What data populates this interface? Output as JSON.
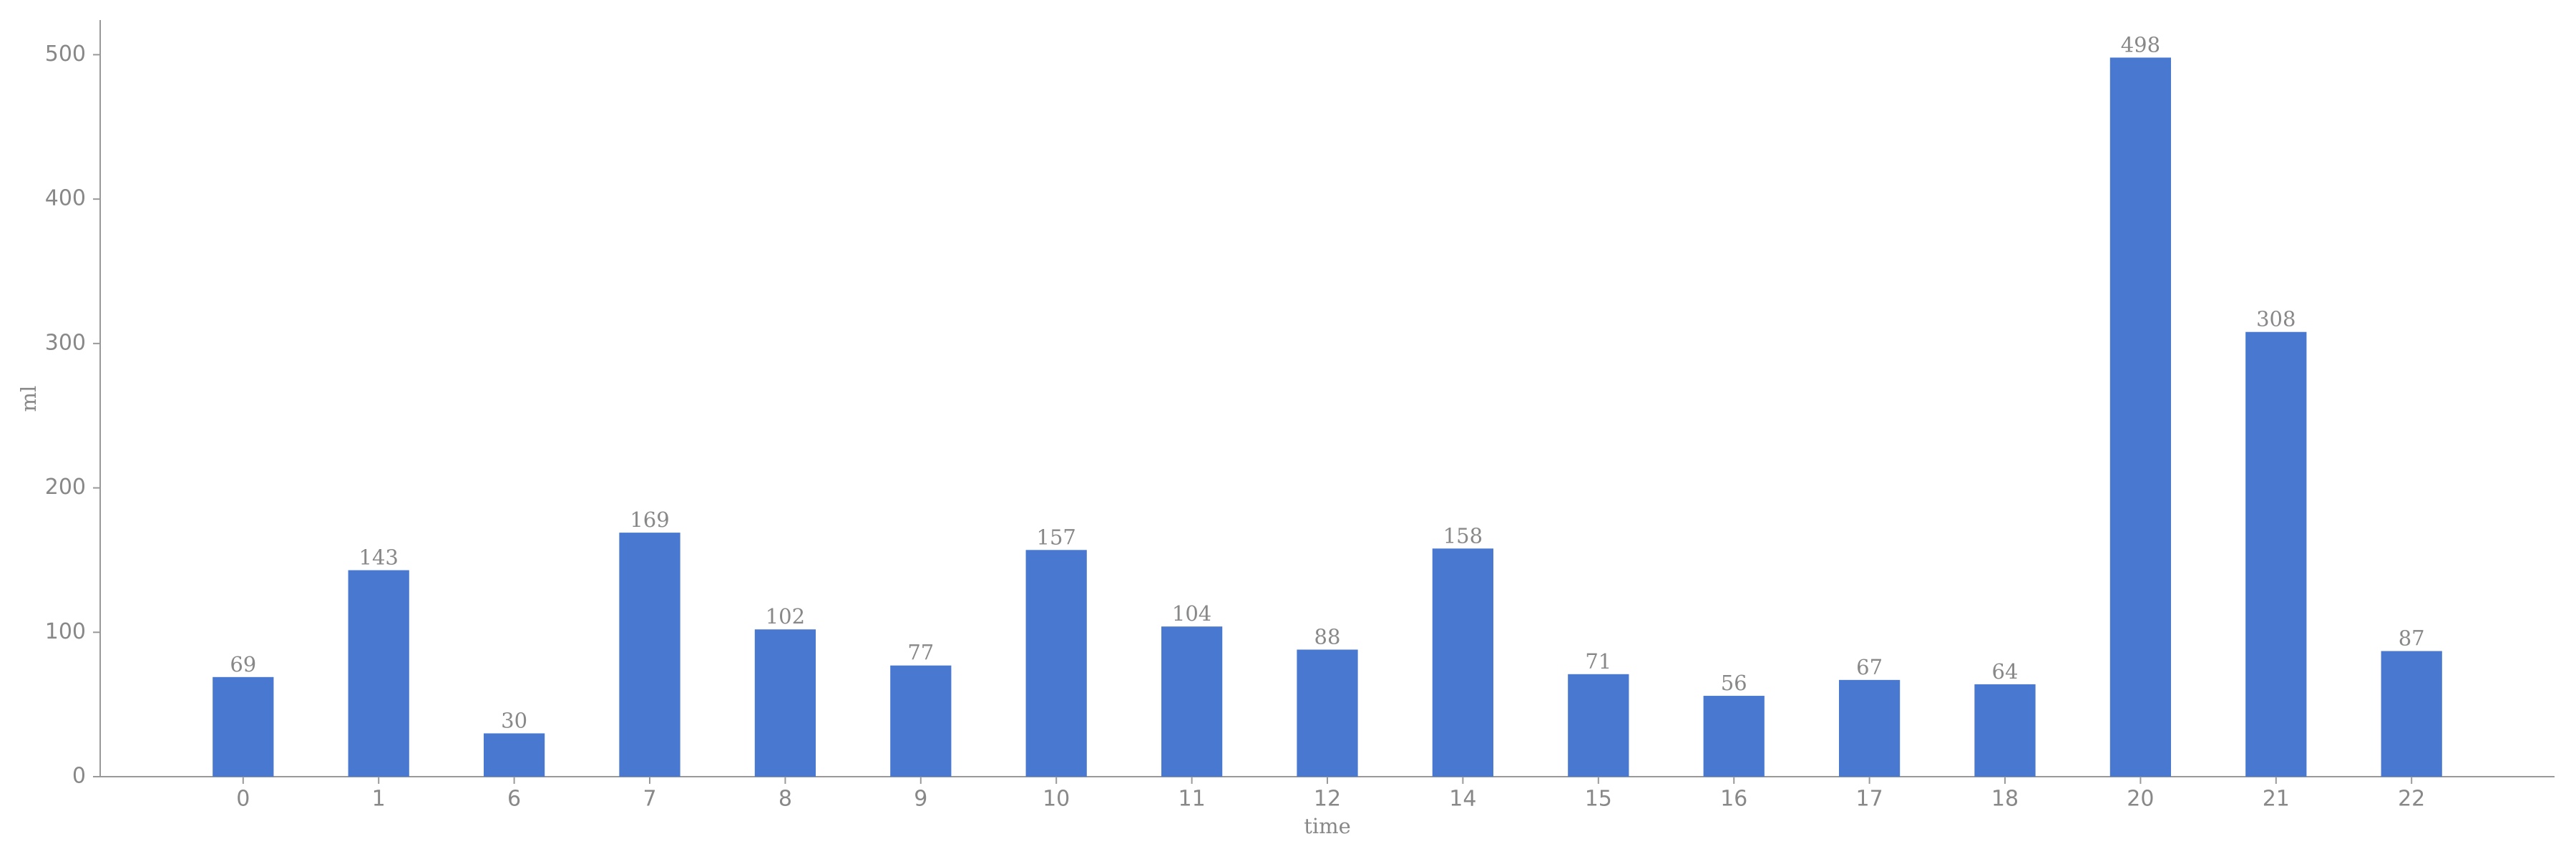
{
  "chart_data": {
    "type": "bar",
    "x_label": "time",
    "y_label": "ml",
    "categories": [
      "0",
      "1",
      "6",
      "7",
      "8",
      "9",
      "10",
      "11",
      "12",
      "14",
      "15",
      "16",
      "17",
      "18",
      "20",
      "21",
      "22"
    ],
    "values": [
      69,
      143,
      30,
      169,
      102,
      77,
      157,
      104,
      88,
      158,
      71,
      56,
      67,
      64,
      498,
      308,
      87
    ],
    "color": "#4878d0",
    "ylim": [
      0,
      524
    ],
    "yticks": [
      0,
      100,
      200,
      300,
      400,
      500
    ],
    "grid": false
  }
}
